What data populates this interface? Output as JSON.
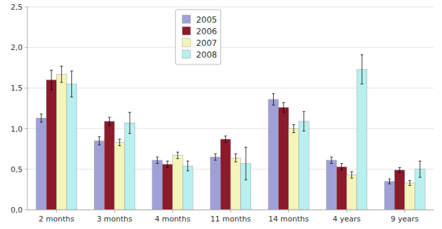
{
  "chart_data": {
    "type": "bar",
    "categories": [
      "2 months",
      "3 months",
      "4 months",
      "11 months",
      "14 months",
      "4 years",
      "9 years"
    ],
    "series": [
      {
        "name": "2005",
        "color": "#a0a0d8",
        "values": [
          1.13,
          0.85,
          0.61,
          0.65,
          1.36,
          0.61,
          0.35
        ],
        "errors": [
          0.05,
          0.05,
          0.04,
          0.04,
          0.07,
          0.04,
          0.03
        ]
      },
      {
        "name": "2006",
        "color": "#8b1a2a",
        "values": [
          1.6,
          1.09,
          0.56,
          0.87,
          1.26,
          0.53,
          0.49
        ],
        "errors": [
          0.12,
          0.05,
          0.04,
          0.04,
          0.06,
          0.04,
          0.03
        ]
      },
      {
        "name": "2007",
        "color": "#f5f5bb",
        "values": [
          1.67,
          0.83,
          0.67,
          0.64,
          1.0,
          0.43,
          0.33
        ],
        "errors": [
          0.1,
          0.04,
          0.04,
          0.05,
          0.05,
          0.04,
          0.03
        ]
      },
      {
        "name": "2008",
        "color": "#b8f0f0",
        "values": [
          1.55,
          1.07,
          0.54,
          0.57,
          1.09,
          1.73,
          0.5
        ],
        "errors": [
          0.16,
          0.13,
          0.06,
          0.2,
          0.12,
          0.18,
          0.1
        ]
      }
    ],
    "ylim": [
      0.0,
      2.5
    ],
    "yticks": [
      {
        "value": 0.0,
        "label": "0,0"
      },
      {
        "value": 0.5,
        "label": "0,5"
      },
      {
        "value": 1.0,
        "label": "1,0"
      },
      {
        "value": 1.5,
        "label": "1,5"
      },
      {
        "value": 2.0,
        "label": "2,0"
      },
      {
        "value": 2.5,
        "label": "2,5"
      }
    ],
    "grid": true,
    "legend": "top"
  }
}
